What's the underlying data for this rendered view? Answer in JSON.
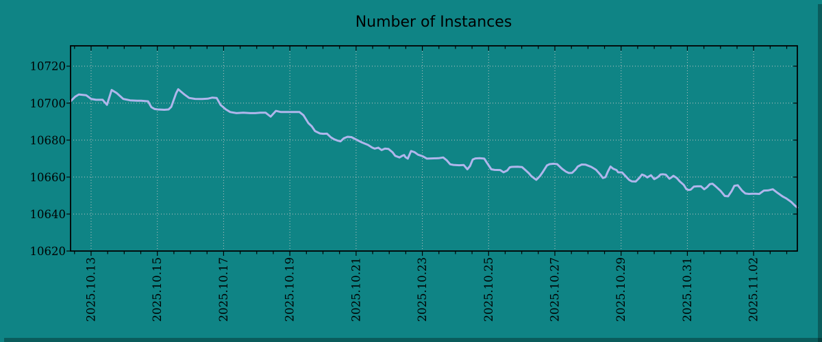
{
  "chart_data": {
    "type": "line",
    "title": "Number of Instances",
    "grid": "dotted",
    "legend_position": "none",
    "x_axis": {
      "epoch": "2025-10-13",
      "unit": "days since epoch",
      "range_days": [
        -0.62,
        21.32
      ],
      "tick_days": [
        0,
        2,
        4,
        6,
        8,
        10,
        12,
        14,
        16,
        18,
        20
      ],
      "tick_labels": [
        "2025.10.13",
        "2025.10.15",
        "2025.10.17",
        "2025.10.19",
        "2025.10.21",
        "2025.10.23",
        "2025.10.25",
        "2025.10.27",
        "2025.10.29",
        "2025.10.31",
        "2025.11.02"
      ],
      "minor_tick_step_days": 0.5
    },
    "y_axis": {
      "ticks": [
        10620,
        10640,
        10660,
        10680,
        10700,
        10720
      ],
      "tick_labels": [
        "10620",
        "10640",
        "10660",
        "10680",
        "10700",
        "10720"
      ],
      "range": [
        10620,
        10731
      ]
    },
    "colors": {
      "background": "#0f8485",
      "plot_background": "#0f8485",
      "grid": "#c6c6c6",
      "axis": "#000000",
      "text": "#000000",
      "line": "#b0b6ec",
      "shadow": "rgba(0,0,0,0.30)"
    },
    "series": [
      {
        "name": "Number of Instances",
        "color": "#b0b6ec",
        "points": [
          [
            -0.62,
            10701.0
          ],
          [
            -0.48,
            10703.5
          ],
          [
            -0.37,
            10704.7
          ],
          [
            -0.15,
            10704.3
          ],
          [
            0.0,
            10702.3
          ],
          [
            0.15,
            10701.8
          ],
          [
            0.35,
            10701.8
          ],
          [
            0.41,
            10700.5
          ],
          [
            0.48,
            10699.1
          ],
          [
            0.62,
            10707.1
          ],
          [
            0.77,
            10705.5
          ],
          [
            0.97,
            10702.3
          ],
          [
            1.18,
            10701.5
          ],
          [
            1.39,
            10701.3
          ],
          [
            1.51,
            10701.3
          ],
          [
            1.72,
            10701.0
          ],
          [
            1.78,
            10699.0
          ],
          [
            1.82,
            10697.8
          ],
          [
            1.92,
            10696.8
          ],
          [
            2.01,
            10696.6
          ],
          [
            2.21,
            10696.4
          ],
          [
            2.34,
            10696.6
          ],
          [
            2.42,
            10698.0
          ],
          [
            2.48,
            10701.0
          ],
          [
            2.57,
            10705.5
          ],
          [
            2.63,
            10707.5
          ],
          [
            2.73,
            10706.0
          ],
          [
            2.83,
            10704.5
          ],
          [
            2.96,
            10702.8
          ],
          [
            3.14,
            10702.3
          ],
          [
            3.35,
            10702.2
          ],
          [
            3.52,
            10702.4
          ],
          [
            3.66,
            10703.0
          ],
          [
            3.79,
            10702.8
          ],
          [
            3.91,
            10699.0
          ],
          [
            4.07,
            10696.6
          ],
          [
            4.2,
            10695.2
          ],
          [
            4.39,
            10694.6
          ],
          [
            4.59,
            10694.8
          ],
          [
            4.8,
            10694.6
          ],
          [
            4.96,
            10694.6
          ],
          [
            5.11,
            10694.8
          ],
          [
            5.27,
            10694.8
          ],
          [
            5.42,
            10692.7
          ],
          [
            5.58,
            10695.8
          ],
          [
            5.73,
            10695.2
          ],
          [
            5.94,
            10695.2
          ],
          [
            6.14,
            10695.2
          ],
          [
            6.29,
            10695.2
          ],
          [
            6.41,
            10693.5
          ],
          [
            6.56,
            10689.2
          ],
          [
            6.66,
            10687.5
          ],
          [
            6.76,
            10684.9
          ],
          [
            6.91,
            10683.6
          ],
          [
            7.01,
            10683.4
          ],
          [
            7.12,
            10683.5
          ],
          [
            7.24,
            10681.5
          ],
          [
            7.32,
            10680.6
          ],
          [
            7.43,
            10679.8
          ],
          [
            7.53,
            10679.3
          ],
          [
            7.63,
            10681.0
          ],
          [
            7.74,
            10681.8
          ],
          [
            7.86,
            10681.6
          ],
          [
            8.0,
            10680.3
          ],
          [
            8.17,
            10678.8
          ],
          [
            8.36,
            10677.4
          ],
          [
            8.48,
            10676.0
          ],
          [
            8.56,
            10675.4
          ],
          [
            8.67,
            10675.9
          ],
          [
            8.77,
            10674.6
          ],
          [
            8.87,
            10675.4
          ],
          [
            8.98,
            10675.2
          ],
          [
            9.1,
            10673.4
          ],
          [
            9.18,
            10671.5
          ],
          [
            9.31,
            10670.6
          ],
          [
            9.39,
            10671.5
          ],
          [
            9.45,
            10671.9
          ],
          [
            9.49,
            10670.8
          ],
          [
            9.56,
            10670.0
          ],
          [
            9.66,
            10674.1
          ],
          [
            9.76,
            10673.5
          ],
          [
            9.87,
            10672.1
          ],
          [
            10.01,
            10671.3
          ],
          [
            10.14,
            10670.0
          ],
          [
            10.28,
            10670.1
          ],
          [
            10.49,
            10670.2
          ],
          [
            10.63,
            10670.6
          ],
          [
            10.74,
            10669.0
          ],
          [
            10.84,
            10666.9
          ],
          [
            10.94,
            10666.6
          ],
          [
            11.11,
            10666.4
          ],
          [
            11.25,
            10666.5
          ],
          [
            11.36,
            10664.2
          ],
          [
            11.44,
            10666.0
          ],
          [
            11.52,
            10669.5
          ],
          [
            11.6,
            10670.1
          ],
          [
            11.73,
            10670.2
          ],
          [
            11.87,
            10670.0
          ],
          [
            11.94,
            10668.0
          ],
          [
            12.08,
            10664.2
          ],
          [
            12.18,
            10663.9
          ],
          [
            12.35,
            10663.8
          ],
          [
            12.45,
            10662.6
          ],
          [
            12.56,
            10663.5
          ],
          [
            12.64,
            10665.3
          ],
          [
            12.7,
            10665.5
          ],
          [
            12.87,
            10665.6
          ],
          [
            13.01,
            10665.4
          ],
          [
            13.11,
            10663.8
          ],
          [
            13.22,
            10662.0
          ],
          [
            13.28,
            10660.7
          ],
          [
            13.38,
            10659.3
          ],
          [
            13.44,
            10658.5
          ],
          [
            13.55,
            10660.5
          ],
          [
            13.63,
            10662.6
          ],
          [
            13.76,
            10666.3
          ],
          [
            13.84,
            10667.0
          ],
          [
            13.96,
            10667.2
          ],
          [
            14.07,
            10667.0
          ],
          [
            14.21,
            10664.6
          ],
          [
            14.33,
            10663.0
          ],
          [
            14.42,
            10662.2
          ],
          [
            14.52,
            10662.3
          ],
          [
            14.62,
            10664.0
          ],
          [
            14.69,
            10665.7
          ],
          [
            14.81,
            10666.8
          ],
          [
            14.93,
            10666.7
          ],
          [
            15.1,
            10665.5
          ],
          [
            15.24,
            10664.0
          ],
          [
            15.31,
            10662.6
          ],
          [
            15.39,
            10661.0
          ],
          [
            15.45,
            10659.5
          ],
          [
            15.53,
            10660.0
          ],
          [
            15.6,
            10663.0
          ],
          [
            15.68,
            10665.7
          ],
          [
            15.76,
            10664.5
          ],
          [
            15.86,
            10663.8
          ],
          [
            15.91,
            10662.6
          ],
          [
            16.03,
            10662.5
          ],
          [
            16.11,
            10661.0
          ],
          [
            16.24,
            10658.5
          ],
          [
            16.32,
            10657.7
          ],
          [
            16.44,
            10657.6
          ],
          [
            16.55,
            10659.5
          ],
          [
            16.63,
            10661.4
          ],
          [
            16.71,
            10660.8
          ],
          [
            16.79,
            10659.8
          ],
          [
            16.9,
            10661.0
          ],
          [
            17.0,
            10658.9
          ],
          [
            17.11,
            10660.0
          ],
          [
            17.19,
            10661.4
          ],
          [
            17.27,
            10661.5
          ],
          [
            17.35,
            10661.3
          ],
          [
            17.46,
            10659.1
          ],
          [
            17.52,
            10659.8
          ],
          [
            17.58,
            10660.7
          ],
          [
            17.68,
            10659.5
          ],
          [
            17.77,
            10657.7
          ],
          [
            17.89,
            10655.8
          ],
          [
            17.97,
            10653.5
          ],
          [
            18.04,
            10653.0
          ],
          [
            18.1,
            10653.2
          ],
          [
            18.2,
            10654.9
          ],
          [
            18.3,
            10655.0
          ],
          [
            18.41,
            10655.0
          ],
          [
            18.51,
            10653.4
          ],
          [
            18.59,
            10654.5
          ],
          [
            18.68,
            10656.2
          ],
          [
            18.76,
            10656.4
          ],
          [
            18.86,
            10654.9
          ],
          [
            19.01,
            10652.4
          ],
          [
            19.13,
            10649.8
          ],
          [
            19.23,
            10649.6
          ],
          [
            19.34,
            10652.5
          ],
          [
            19.42,
            10655.3
          ],
          [
            19.52,
            10655.6
          ],
          [
            19.65,
            10652.7
          ],
          [
            19.75,
            10651.1
          ],
          [
            19.86,
            10650.9
          ],
          [
            19.96,
            10651.0
          ],
          [
            20.06,
            10651.0
          ],
          [
            20.17,
            10650.9
          ],
          [
            20.31,
            10652.7
          ],
          [
            20.43,
            10652.8
          ],
          [
            20.58,
            10653.4
          ],
          [
            20.72,
            10651.5
          ],
          [
            20.87,
            10649.6
          ],
          [
            20.99,
            10648.4
          ],
          [
            21.14,
            10646.5
          ],
          [
            21.24,
            10644.7
          ],
          [
            21.32,
            10643.5
          ]
        ]
      }
    ]
  }
}
